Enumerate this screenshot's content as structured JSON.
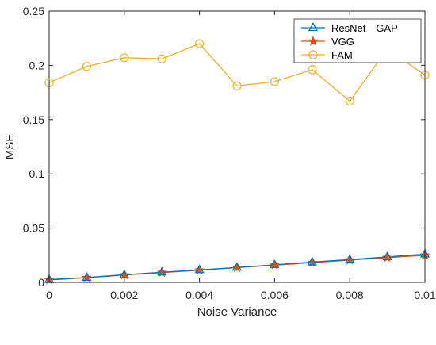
{
  "chart_data": {
    "type": "line",
    "title": "",
    "xlabel": "Noise Variance",
    "ylabel": "MSE",
    "xlim": [
      0,
      0.01
    ],
    "ylim": [
      0,
      0.25
    ],
    "x_ticks": [
      "0",
      "0.002",
      "0.004",
      "0.006",
      "0.008",
      "0.01"
    ],
    "y_ticks": [
      "0",
      "0.05",
      "0.1",
      "0.15",
      "0.2",
      "0.25"
    ],
    "grid": false,
    "legend_position": "top-right",
    "x": [
      0,
      0.001,
      0.002,
      0.003,
      0.004,
      0.005,
      0.006,
      0.007,
      0.008,
      0.009,
      0.01
    ],
    "series": [
      {
        "name": "ResNet—GAP",
        "marker": "triangle",
        "color": "#0072BD",
        "values": [
          0.0025,
          0.0045,
          0.007,
          0.0093,
          0.0115,
          0.0137,
          0.0162,
          0.0187,
          0.021,
          0.0235,
          0.026
        ]
      },
      {
        "name": "VGG",
        "marker": "star",
        "color": "#D95319",
        "values": [
          0.0022,
          0.0043,
          0.0068,
          0.009,
          0.0112,
          0.0135,
          0.0158,
          0.0182,
          0.0205,
          0.0228,
          0.025
        ]
      },
      {
        "name": "FAM",
        "marker": "circle",
        "color": "#EDB120",
        "values": [
          0.184,
          0.199,
          0.207,
          0.206,
          0.22,
          0.181,
          0.185,
          0.196,
          0.167,
          0.215,
          0.191
        ]
      }
    ]
  }
}
